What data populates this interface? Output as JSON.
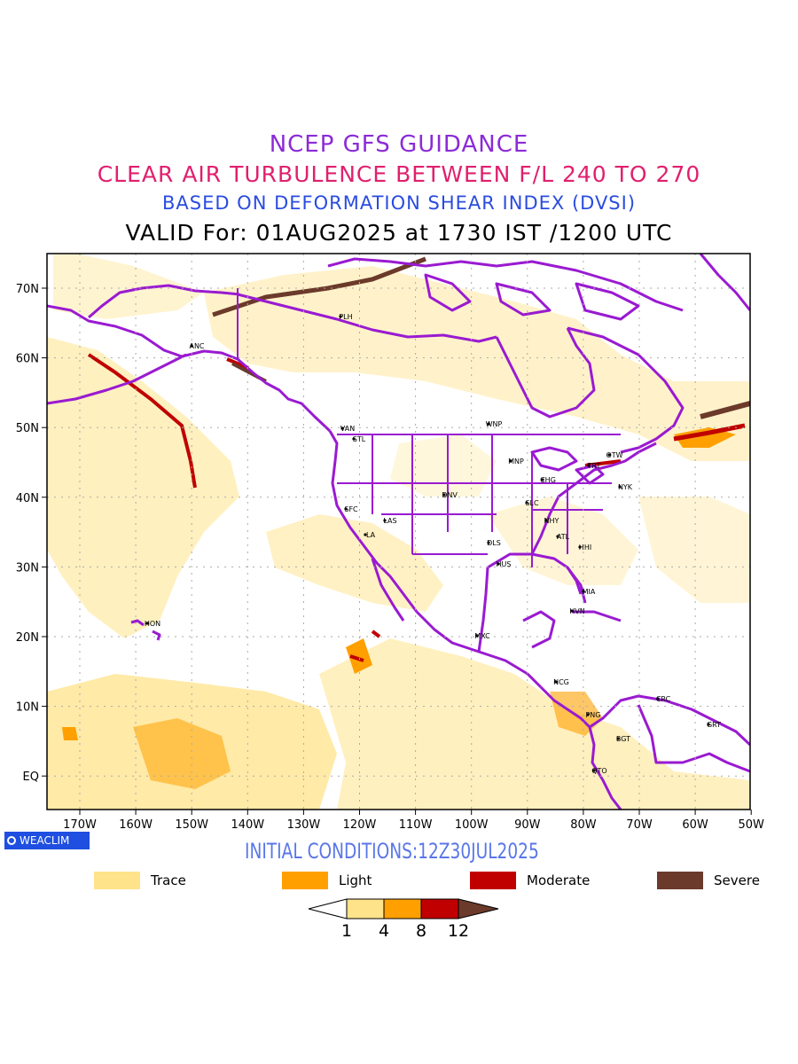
{
  "titles": {
    "line1": "NCEP GFS GUIDANCE",
    "line2": "CLEAR AIR TURBULENCE BETWEEN F/L 240 TO 270",
    "line3": "BASED ON DEFORMATION SHEAR INDEX (DVSI)",
    "line4": "VALID For: 01AUG2025 at 1730 IST /1200 UTC"
  },
  "axes": {
    "lon_labels": [
      "170W",
      "160W",
      "150W",
      "140W",
      "130W",
      "120W",
      "110W",
      "100W",
      "90W",
      "80W",
      "70W",
      "60W",
      "50W"
    ],
    "lat_labels": [
      "70N",
      "60N",
      "50N",
      "40N",
      "30N",
      "20N",
      "10N",
      "EQ"
    ]
  },
  "stations": [
    "ANC",
    "PLH",
    "VAN",
    "STL",
    "WNP",
    "MNP",
    "OTW",
    "TRT",
    "NYK",
    "CHG",
    "DNV",
    "SLC",
    "SFC",
    "LAS",
    "LA",
    "NHY",
    "ATL",
    "DLS",
    "HHI",
    "HUS",
    "MIA",
    "HVN",
    "MXC",
    "HON",
    "NCG",
    "PNG",
    "CRC",
    "GRT",
    "BGT",
    "QTO"
  ],
  "badge": "WEACLIM",
  "initial_conditions": "INITIAL CONDITIONS:12Z30JUL2025",
  "legend": [
    {
      "label": "Trace",
      "color": "#ffe38a"
    },
    {
      "label": "Light",
      "color": "#ffa000"
    },
    {
      "label": "Moderate",
      "color": "#c00000"
    },
    {
      "label": "Severe",
      "color": "#6b3a2a"
    }
  ],
  "colorbar": {
    "ticks": [
      "1",
      "4",
      "8",
      "12"
    ],
    "colors": [
      "#ffffff",
      "#ffe38a",
      "#ffa000",
      "#c00000",
      "#6b3a2a"
    ]
  },
  "colors": {
    "coast": "#9a1ad1",
    "trace": "#ffe38a",
    "light": "#ffa000",
    "moderate": "#c00000",
    "severe": "#6b3a2a"
  }
}
